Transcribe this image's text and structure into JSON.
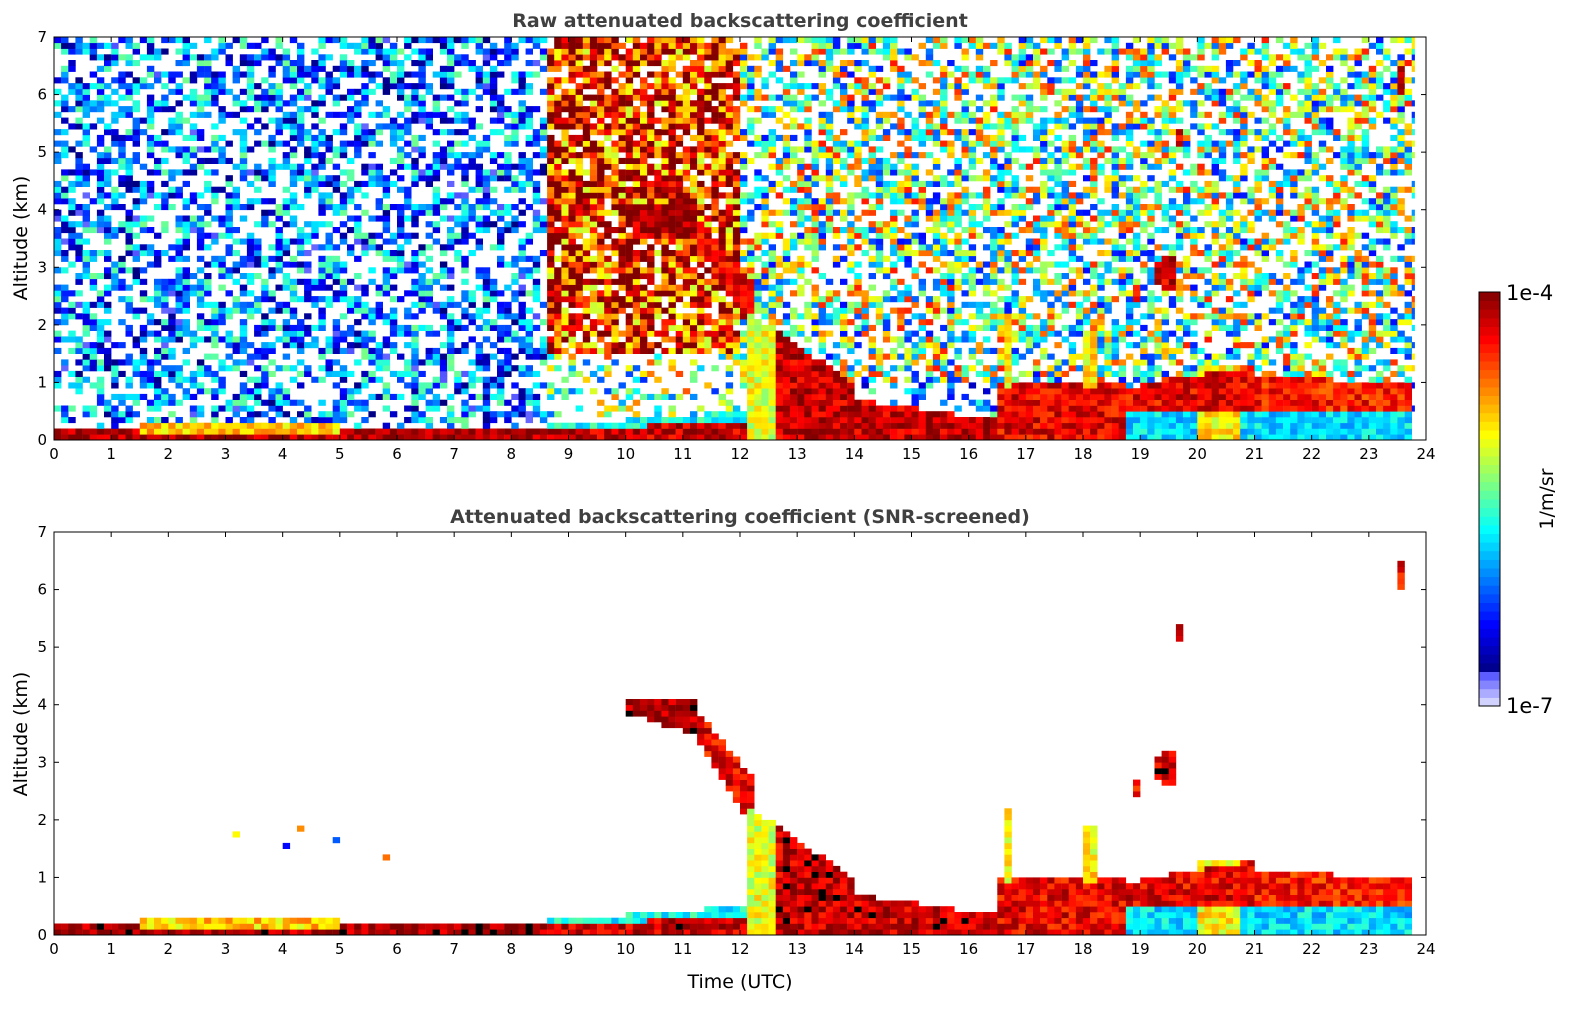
{
  "chart_data": [
    {
      "type": "heatmap",
      "title": "Raw attenuated backscattering coefficient",
      "xlabel": "",
      "ylabel": "Altitude (km)",
      "xlim": [
        0,
        24
      ],
      "ylim": [
        0,
        7
      ],
      "xticks": [
        "0",
        "1",
        "2",
        "3",
        "4",
        "5",
        "6",
        "7",
        "8",
        "9",
        "10",
        "11",
        "12",
        "13",
        "14",
        "15",
        "16",
        "17",
        "18",
        "19",
        "20",
        "21",
        "22",
        "23",
        "24"
      ],
      "yticks": [
        "0",
        "1",
        "2",
        "3",
        "4",
        "5",
        "6",
        "7"
      ],
      "data_end_time": 23.8,
      "background": [
        {
          "t": [
            0,
            8.6
          ],
          "z": [
            0.3,
            7
          ],
          "log10_value": -6.1,
          "density": 0.55,
          "spread": 0.7
        },
        {
          "t": [
            0,
            8.6
          ],
          "z": [
            0.15,
            0.3
          ],
          "log10_value": -6.0,
          "density": 0.25,
          "spread": 0.6
        },
        {
          "t": [
            8.6,
            12.0
          ],
          "z": [
            1.5,
            7
          ],
          "log10_value": -4.4,
          "density": 0.85,
          "spread": 0.8
        },
        {
          "t": [
            8.6,
            12.0
          ],
          "z": [
            0.4,
            1.5
          ],
          "log10_value": -5.4,
          "density": 0.35,
          "spread": 0.9
        },
        {
          "t": [
            12.0,
            24
          ],
          "z": [
            1.0,
            7
          ],
          "log10_value": -5.4,
          "density": 0.6,
          "spread": 1.0
        },
        {
          "t": [
            12.0,
            24
          ],
          "z": [
            0.3,
            1.0
          ],
          "log10_value": -6.0,
          "density": 0.35,
          "spread": 0.6
        }
      ],
      "layers": [
        {
          "t": [
            0,
            8.6
          ],
          "z_bottom": [
            0,
            0
          ],
          "z_top": [
            0.12,
            0.12
          ],
          "log10_value": -4.1
        },
        {
          "t": [
            1.5,
            5.0
          ],
          "z_bottom": [
            0.12,
            0.12
          ],
          "z_top": [
            0.22,
            0.2
          ],
          "log10_value": -4.9
        },
        {
          "t": [
            8.6,
            12.1
          ],
          "z_bottom": [
            0.1,
            0.25
          ],
          "z_top": [
            0.2,
            0.45
          ],
          "log10_value": -5.7
        },
        {
          "t": [
            8.6,
            12.1
          ],
          "z_bottom": [
            0,
            0
          ],
          "z_top": [
            0.12,
            0.28
          ],
          "log10_value": -4.2
        },
        {
          "t": [
            10.0,
            11.2
          ],
          "z_bottom": [
            3.85,
            3.5
          ],
          "z_top": [
            4.1,
            4.05
          ],
          "log10_value": -4.1
        },
        {
          "t": [
            11.2,
            12.3
          ],
          "z_bottom": [
            3.5,
            1.7
          ],
          "z_top": [
            3.9,
            2.6
          ],
          "log10_value": -4.3
        },
        {
          "t": [
            12.1,
            12.6
          ],
          "z_bottom": [
            0,
            0
          ],
          "z_top": [
            2.2,
            1.9
          ],
          "log10_value": -5.1
        },
        {
          "t": [
            12.6,
            14.0
          ],
          "z_bottom": [
            0,
            0
          ],
          "z_top": [
            1.9,
            0.9
          ],
          "log10_value": -4.2
        },
        {
          "t": [
            14.0,
            16.5
          ],
          "z_bottom": [
            0,
            0
          ],
          "z_top": [
            0.65,
            0.3
          ],
          "log10_value": -4.2
        },
        {
          "t": [
            16.5,
            18.7
          ],
          "z_bottom": [
            0,
            0
          ],
          "z_top": [
            1.0,
            0.9
          ],
          "log10_value": -4.3
        },
        {
          "t": [
            16.6,
            16.8
          ],
          "z_bottom": [
            0.9,
            0.9
          ],
          "z_top": [
            2.2,
            2.2
          ],
          "log10_value": -5.0
        },
        {
          "t": [
            18.0,
            18.2
          ],
          "z_bottom": [
            0.9,
            0.9
          ],
          "z_top": [
            1.9,
            1.9
          ],
          "log10_value": -5.0
        },
        {
          "t": [
            18.7,
            23.8
          ],
          "z_bottom": [
            0,
            0
          ],
          "z_top": [
            0.75,
            0.8
          ],
          "log10_value": -5.8
        },
        {
          "t": [
            20.0,
            20.8
          ],
          "z_bottom": [
            0,
            0
          ],
          "z_top": [
            1.3,
            1.3
          ],
          "log10_value": -5.0
        },
        {
          "t": [
            18.7,
            21.0
          ],
          "z_bottom": [
            0.45,
            0.55
          ],
          "z_top": [
            0.85,
            1.25
          ],
          "log10_value": -4.3
        },
        {
          "t": [
            21.0,
            23.8
          ],
          "z_bottom": [
            0.55,
            0.45
          ],
          "z_top": [
            1.05,
            0.95
          ],
          "log10_value": -4.4
        },
        {
          "t": [
            19.2,
            19.6
          ],
          "z_bottom": [
            2.7,
            2.6
          ],
          "z_top": [
            3.0,
            3.2
          ],
          "log10_value": -4.2
        },
        {
          "t": [
            18.9,
            19.0
          ],
          "z_bottom": [
            2.4,
            2.4
          ],
          "z_top": [
            2.7,
            2.7
          ],
          "log10_value": -4.3
        },
        {
          "t": [
            23.45,
            23.6
          ],
          "z_bottom": [
            6.0,
            6.0
          ],
          "z_top": [
            6.4,
            6.4
          ],
          "log10_value": -4.3
        },
        {
          "t": [
            19.6,
            19.7
          ],
          "z_bottom": [
            5.1,
            5.1
          ],
          "z_top": [
            5.3,
            5.3
          ],
          "log10_value": -4.3
        }
      ]
    },
    {
      "type": "heatmap",
      "title": "Attenuated backscattering coefficient (SNR-screened)",
      "xlabel": "Time (UTC)",
      "ylabel": "Altitude (km)",
      "xlim": [
        0,
        24
      ],
      "ylim": [
        0,
        7
      ],
      "xticks": [
        "0",
        "1",
        "2",
        "3",
        "4",
        "5",
        "6",
        "7",
        "8",
        "9",
        "10",
        "11",
        "12",
        "13",
        "14",
        "15",
        "16",
        "17",
        "18",
        "19",
        "20",
        "21",
        "22",
        "23",
        "24"
      ],
      "yticks": [
        "0",
        "1",
        "2",
        "3",
        "4",
        "5",
        "6",
        "7"
      ],
      "data_end_time": 23.8,
      "background": [
        {
          "t": [
            0,
            8.6
          ],
          "z": [
            0.12,
            0.25
          ],
          "log10_value": -5.9,
          "density": 0.95,
          "spread": 0.3
        },
        {
          "t": [
            1.0,
            7.0
          ],
          "z": [
            0.9,
            2.0
          ],
          "log10_value": -5.3,
          "density": 0.01,
          "spread": 1.2
        }
      ],
      "layers": "same as raw, SNR-screened",
      "colorbar": {
        "label": "1/m/sr",
        "max_label": "1e-4",
        "min_label": "1e-7",
        "scale": "log",
        "range_log10": [
          -7,
          -4
        ]
      }
    }
  ],
  "colorbar": {
    "label": "1/m/sr",
    "max_label": "1e-4",
    "min_label": "1e-7"
  }
}
